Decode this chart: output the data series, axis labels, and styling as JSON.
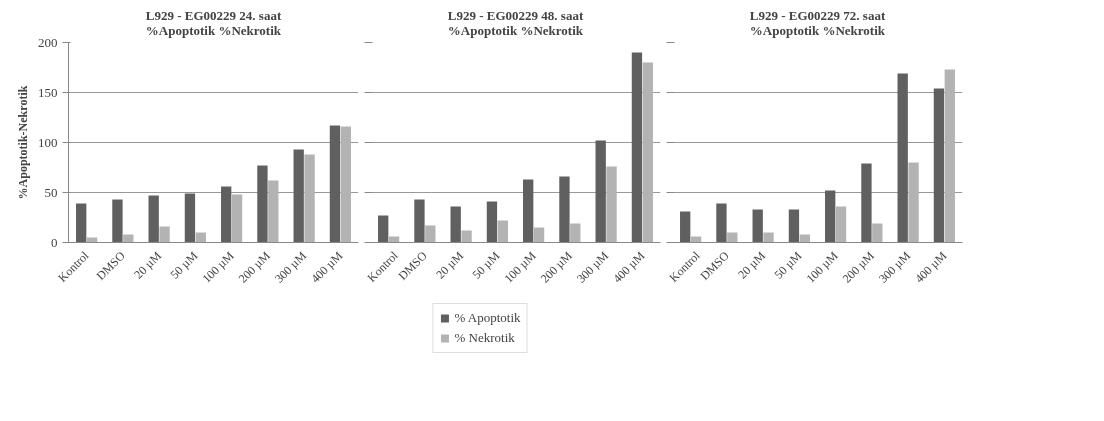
{
  "chart_data": [
    {
      "type": "bar",
      "title": "L929 - EG00229 24. saat\n%Apoptotik %Nekrotik",
      "ylabel": "%Apoptotik-Nekrotik",
      "categories": [
        "Kontrol",
        "DMSO",
        "20 µM",
        "50 µM",
        "100 µM",
        "200 µM",
        "300 µM",
        "400 µM"
      ],
      "series": [
        {
          "color": "#606060",
          "values": [
            39,
            43,
            47,
            49,
            56,
            77,
            93,
            117
          ]
        },
        {
          "color": "#b3b3b3",
          "values": [
            5,
            8,
            16,
            10,
            48,
            62,
            88,
            116
          ]
        }
      ],
      "ylim": [
        0,
        200
      ],
      "yticks": [
        0,
        50,
        100,
        150,
        200
      ],
      "grid": "y",
      "legend": false
    },
    {
      "type": "bar",
      "title": "L929 - EG00229 48. saat\n%Apoptotik %Nekrotik",
      "categories": [
        "Kontrol",
        "DMSO",
        "20 µM",
        "50 µM",
        "100 µM",
        "200 µM",
        "300 µM",
        "400 µM"
      ],
      "series": [
        {
          "name": "% Apoptotik",
          "color": "#606060",
          "values": [
            27,
            43,
            36,
            41,
            63,
            66,
            102,
            190
          ]
        },
        {
          "name": "% Nekrotik",
          "color": "#b3b3b3",
          "values": [
            6,
            17,
            12,
            22,
            15,
            19,
            76,
            180
          ]
        }
      ],
      "ylim": [
        0,
        200
      ],
      "yticks": [
        0,
        50,
        100,
        150,
        200
      ],
      "grid": "y",
      "tick_labels": "x",
      "legend": "bottom"
    },
    {
      "type": "bar",
      "title": "L929 - EG00229 72. saat\n%Apoptotik %Nekrotik",
      "categories": [
        "Kontrol",
        "DMSO",
        "20 µM",
        "50 µM",
        "100 µM",
        "200 µM",
        "300 µM",
        "400 µM"
      ],
      "series": [
        {
          "color": "#606060",
          "values": [
            31,
            39,
            33,
            33,
            52,
            79,
            169,
            154
          ]
        },
        {
          "color": "#b3b3b3",
          "values": [
            6,
            10,
            10,
            8,
            36,
            19,
            80,
            173
          ]
        }
      ],
      "ylim": [
        0,
        200
      ],
      "yticks": [
        0,
        50,
        100,
        150,
        200
      ],
      "grid": "y",
      "tick_labels": "x",
      "legend": false
    }
  ]
}
